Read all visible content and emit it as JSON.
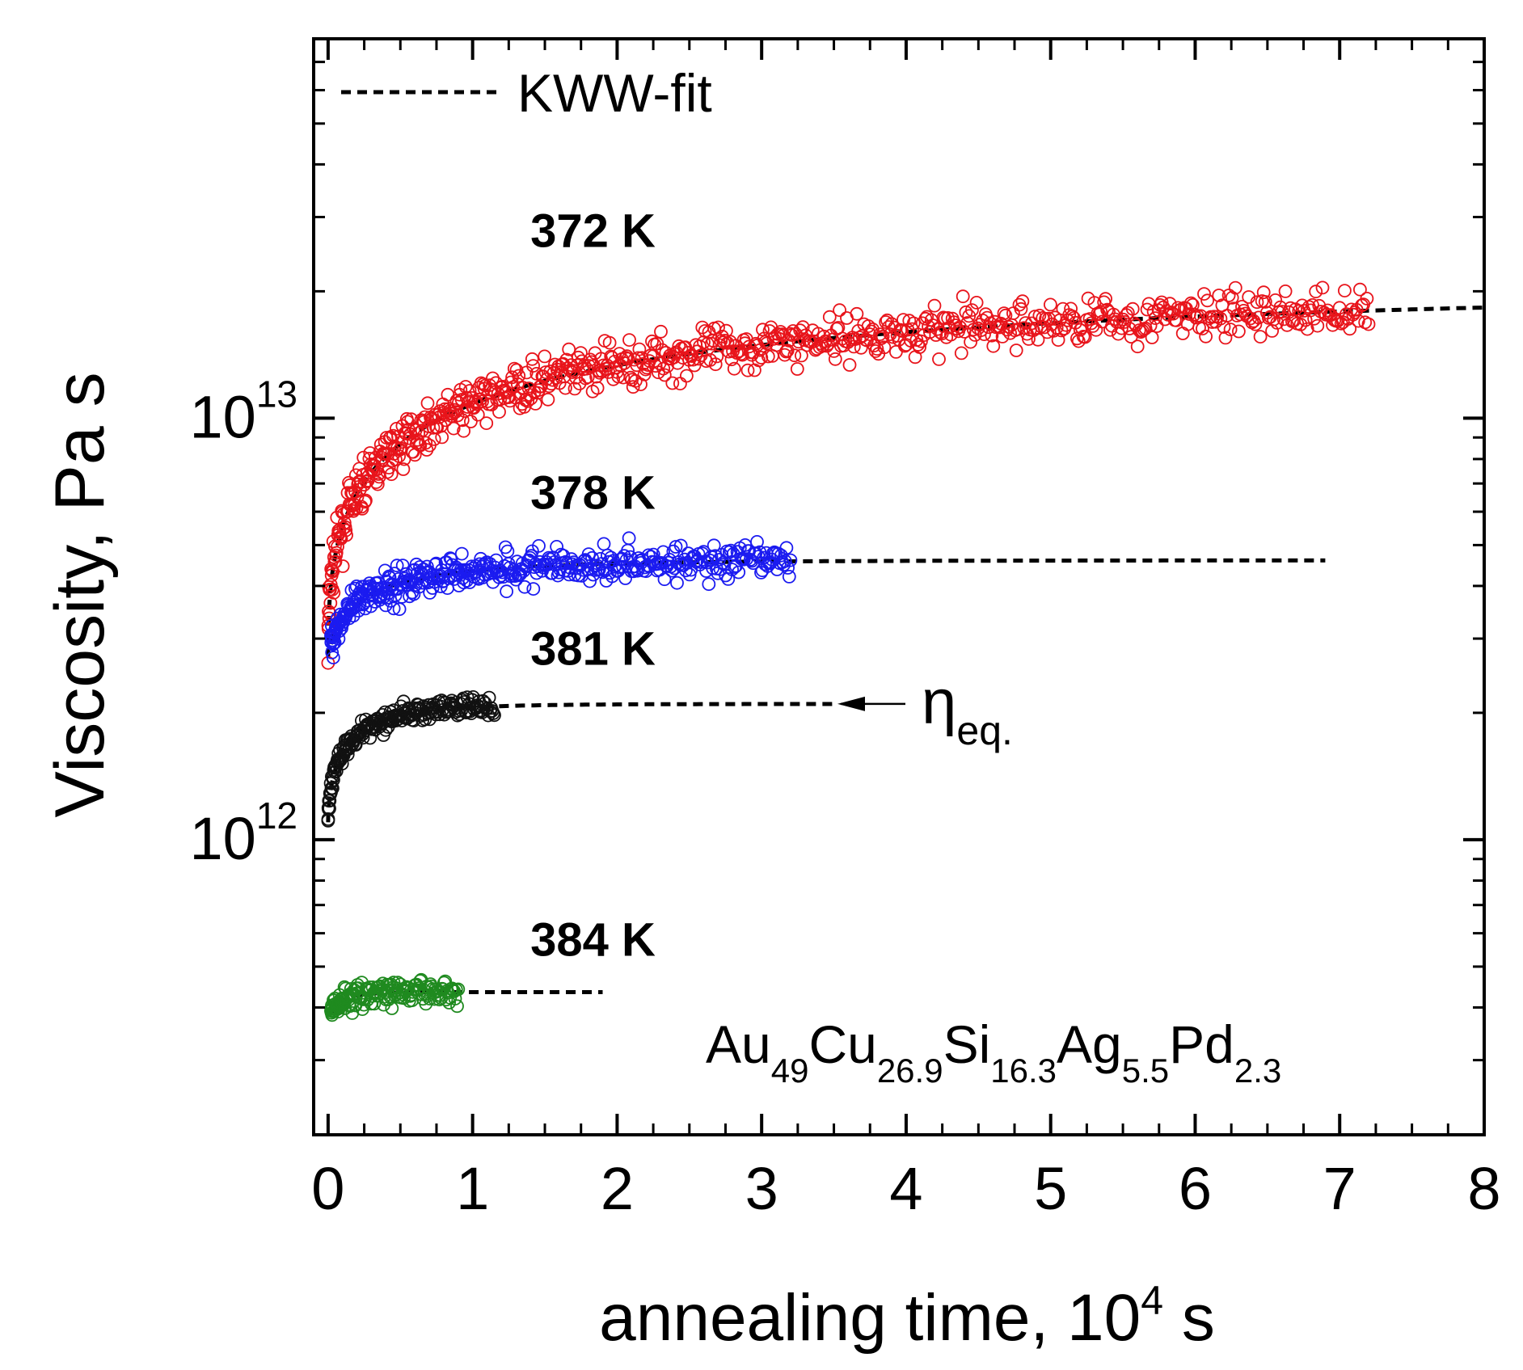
{
  "chart_data": {
    "type": "scatter",
    "xlabel": "annealing time, 10",
    "xlabel_sup": "4",
    "xlabel_unit": " s",
    "ylabel": "Viscosity, Pa s",
    "xlim": [
      -0.1,
      8
    ],
    "ylim_log10": [
      11.3,
      13.9
    ],
    "y_scale": "log",
    "x_ticks": [
      "0",
      "1",
      "2",
      "3",
      "4",
      "5",
      "6",
      "7",
      "8"
    ],
    "y_ticks": [
      {
        "base": "10",
        "exp": "12",
        "value": 1000000000000.0
      },
      {
        "base": "10",
        "exp": "13",
        "value": 10000000000000.0
      }
    ],
    "legend": {
      "label": "KWW-fit",
      "placement": "top-left",
      "style": "dashed"
    },
    "composition": {
      "parts": [
        {
          "el": "Au",
          "sub": "49"
        },
        {
          "el": "Cu",
          "sub": "26.9"
        },
        {
          "el": "Si",
          "sub": "16.3"
        },
        {
          "el": "Ag",
          "sub": "5.5"
        },
        {
          "el": "Pd",
          "sub": "2.3"
        }
      ]
    },
    "annotation": {
      "symbol": "η",
      "sub": "eq.",
      "arrow_target_x": 1.0,
      "arrow_target_eta": 2100000000000.0
    },
    "series": [
      {
        "name": "372 K",
        "label": "372 K",
        "color": "#e8141b",
        "eta0": 2700000000000.0,
        "eta_eq": 21000000000000.0,
        "tau": 0.75,
        "beta": 0.42,
        "x_start": 0.0,
        "x_end": 7.2,
        "fit_end": 8.0,
        "noise": 0.045,
        "count": 820,
        "label_x": 1.4,
        "label_eta": 25500000000000.0
      },
      {
        "name": "378 K",
        "label": "378 K",
        "color": "#1b1bf0",
        "eta0": 2600000000000.0,
        "eta_eq": 4600000000000.0,
        "tau": 0.25,
        "beta": 0.6,
        "x_start": 0.02,
        "x_end": 3.2,
        "fit_end": 6.9,
        "noise": 0.035,
        "count": 460,
        "label_x": 1.4,
        "label_eta": 6100000000000.0
      },
      {
        "name": "381 K",
        "label": "381 K",
        "color": "#111111",
        "eta0": 1100000000000.0,
        "eta_eq": 2100000000000.0,
        "tau": 0.12,
        "beta": 0.6,
        "x_start": 0.0,
        "x_end": 1.15,
        "fit_end": 3.5,
        "noise": 0.02,
        "count": 220,
        "label_x": 1.4,
        "label_eta": 2600000000000.0
      },
      {
        "name": "384 K",
        "label": "384 K",
        "color": "#1f8a1f",
        "eta0": 360000000000.0,
        "eta_eq": 435000000000.0,
        "tau": 0.06,
        "beta": 0.7,
        "x_start": 0.02,
        "x_end": 0.9,
        "fit_end": 1.9,
        "noise": 0.025,
        "count": 170,
        "label_x": 1.4,
        "label_eta": 530000000000.0
      }
    ]
  }
}
